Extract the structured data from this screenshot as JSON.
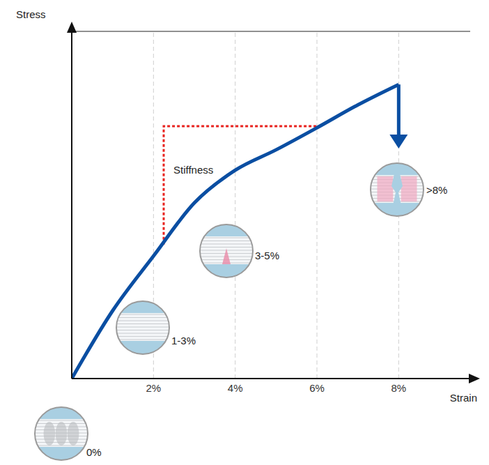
{
  "chart_data": {
    "type": "line",
    "x_label": "Strain",
    "y_label": "Stress",
    "x": [
      0,
      1,
      2,
      3,
      4,
      5,
      6,
      7,
      8,
      8
    ],
    "values": [
      0,
      0.83,
      1.5,
      2.15,
      2.55,
      2.8,
      3.07,
      3.35,
      3.6,
      2.85
    ],
    "color": "#0a4ea2",
    "xlim": [
      0,
      9.75
    ],
    "ylim": [
      0,
      4.25
    ],
    "xticks": [
      {
        "value": 2,
        "label": "2%"
      },
      {
        "value": 4,
        "label": "4%"
      },
      {
        "value": 6,
        "label": "6%"
      },
      {
        "value": 8,
        "label": "8%"
      }
    ],
    "yticks": [
      0,
      1,
      2,
      3,
      4
    ],
    "grid": true,
    "tick_labels": "x",
    "stiffness": {
      "label": "Stiffness",
      "x": [
        2.25,
        2.25,
        6.1
      ],
      "y": [
        1.64,
        3.09,
        3.09
      ],
      "color": "#e8231f",
      "line_style": "dotted"
    },
    "annotations": [
      "0%",
      "1-3%",
      "3-5%",
      ">8%"
    ]
  }
}
